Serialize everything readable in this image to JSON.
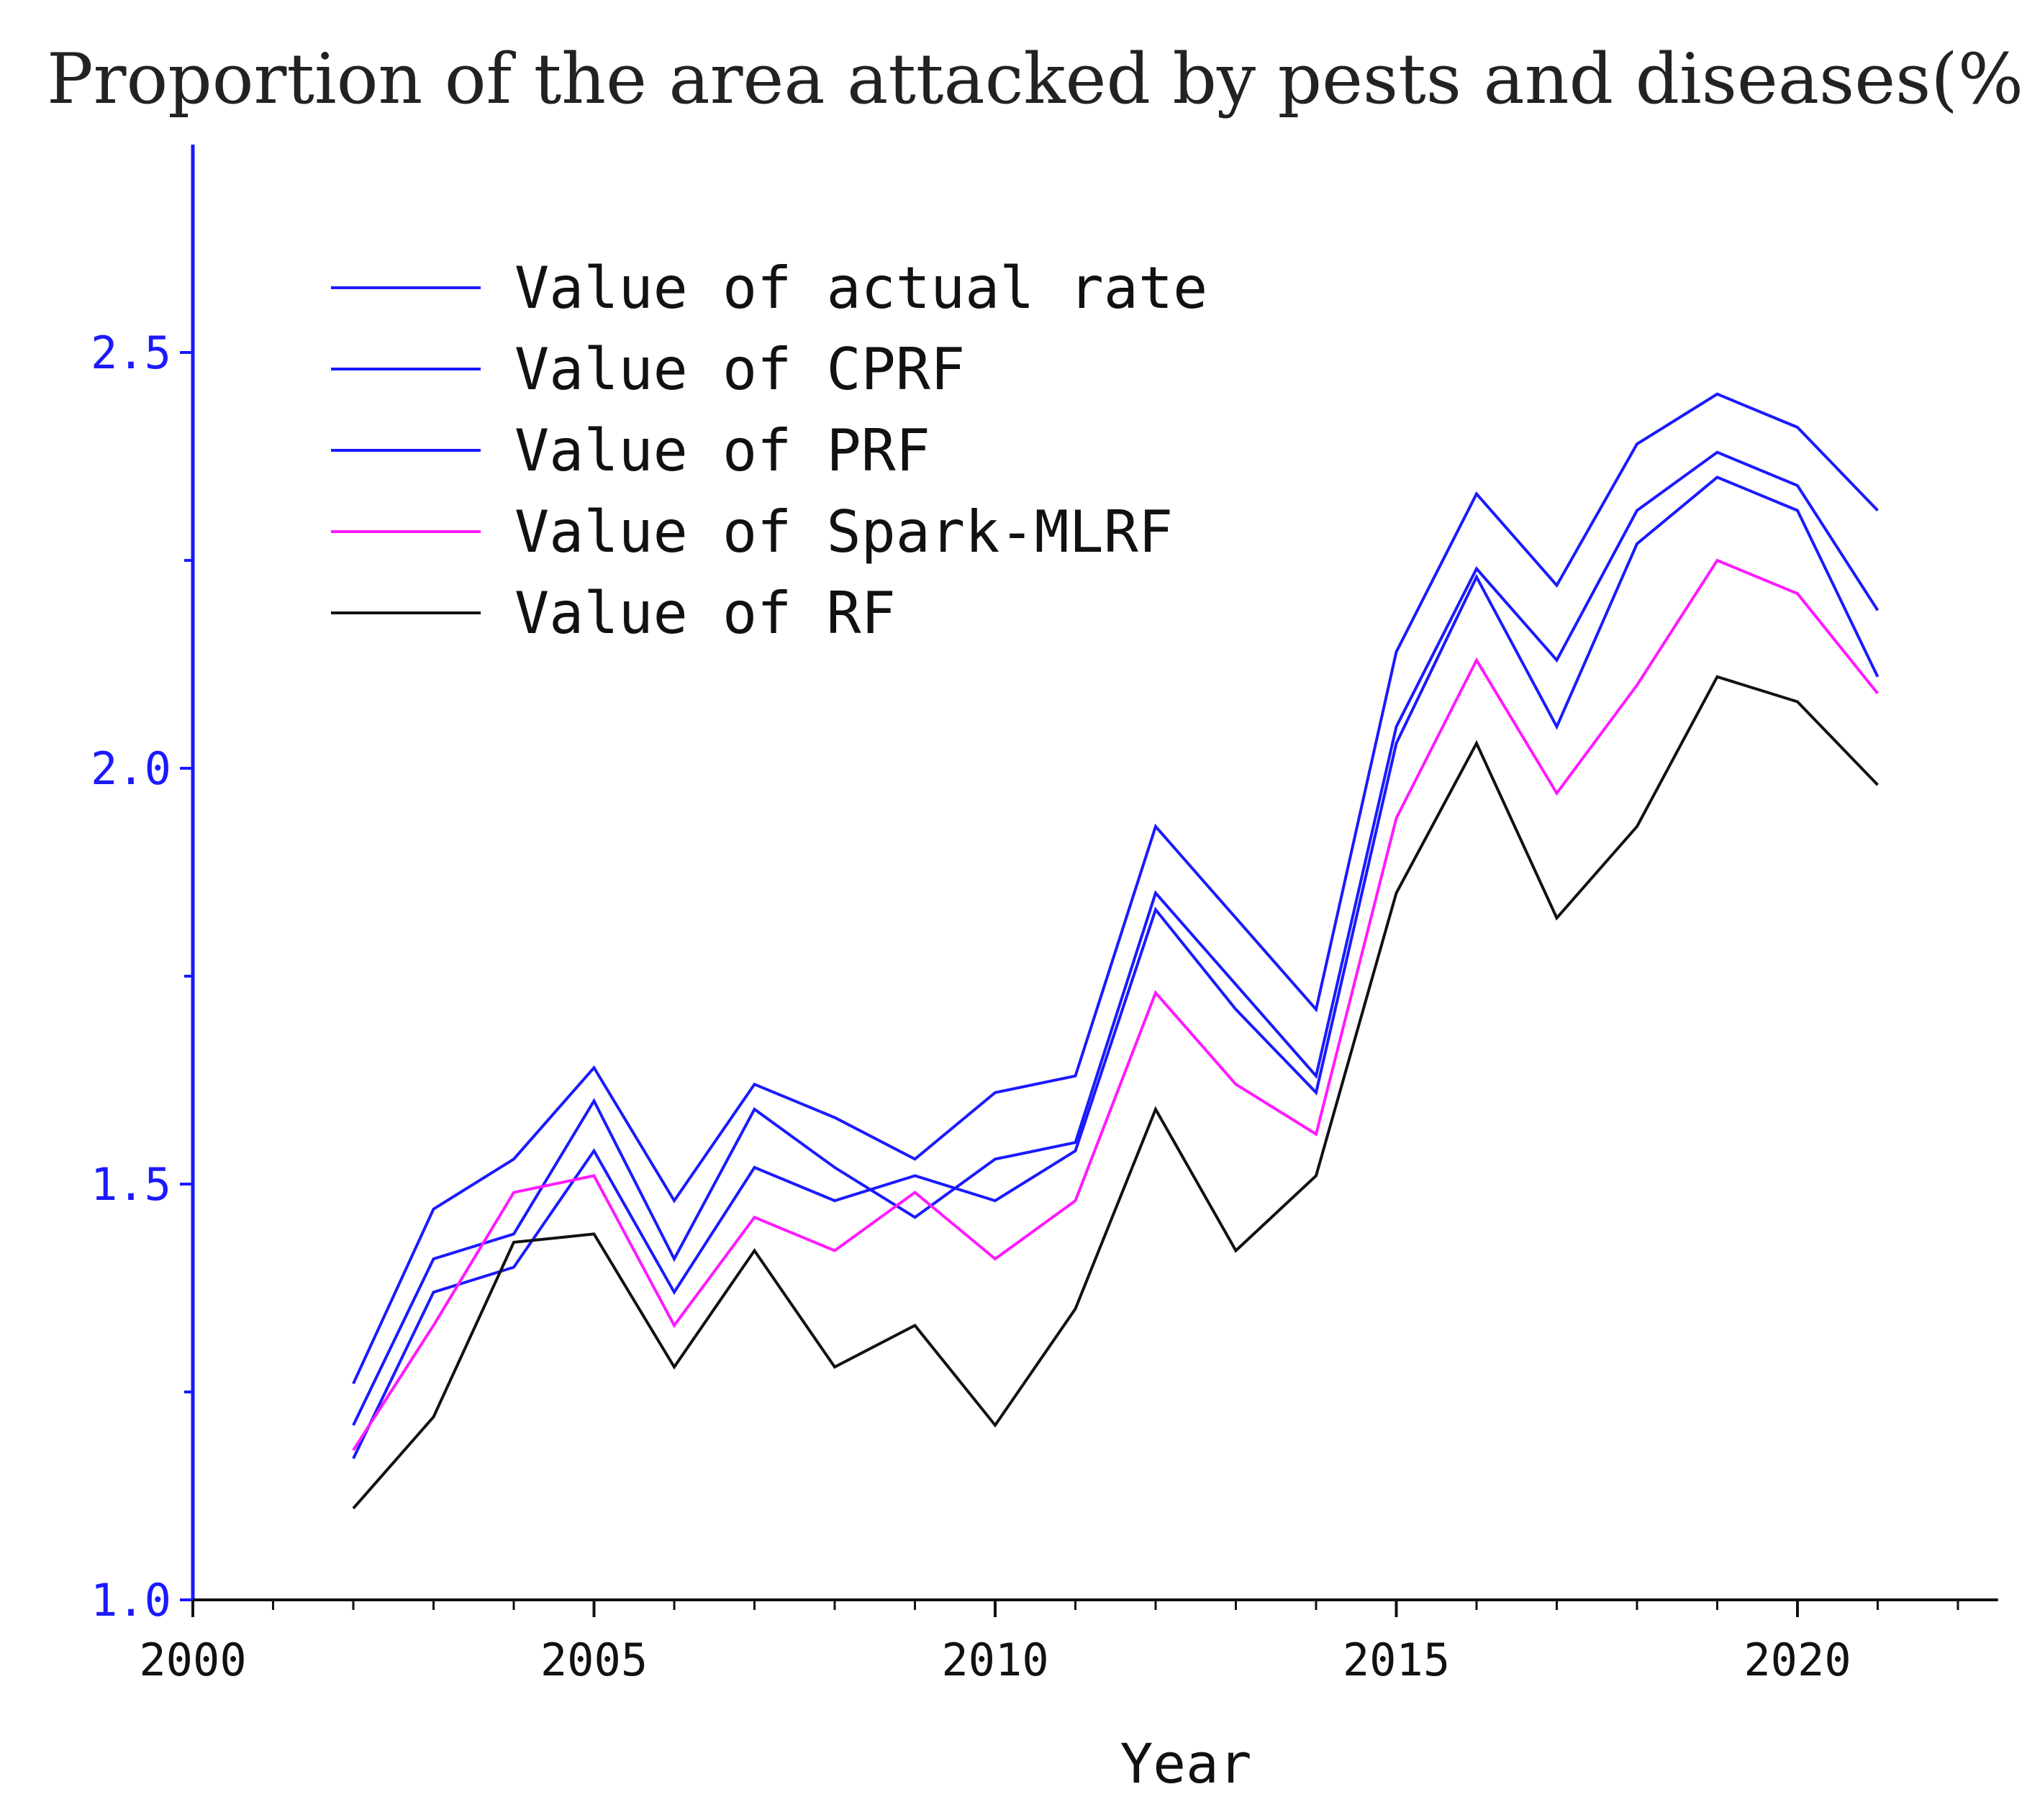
{
  "chart_data": {
    "type": "line",
    "title": "Proportion of the area attacked by pests and diseases(%)",
    "xlabel": "Year",
    "ylabel": "",
    "xlim": [
      2000,
      2022.5
    ],
    "ylim": [
      1.0,
      2.75
    ],
    "x_ticks": [
      2000,
      2005,
      2010,
      2015,
      2020
    ],
    "x_tick_labels": [
      "2000",
      "2005",
      "2010",
      "2015",
      "2020"
    ],
    "x_minor_ticks": [
      2001,
      2002,
      2003,
      2004,
      2006,
      2007,
      2008,
      2009,
      2011,
      2012,
      2013,
      2014,
      2016,
      2017,
      2018,
      2019,
      2021,
      2022
    ],
    "y_ticks": [
      1.0,
      1.5,
      2.0,
      2.5
    ],
    "y_tick_labels": [
      "1.0",
      "1.5",
      "2.0",
      "2.5"
    ],
    "y_minor_ticks": [
      1.25,
      1.75,
      2.25
    ],
    "grid": false,
    "legend_position": "top-left",
    "x": [
      2002,
      2003,
      2004,
      2005,
      2006,
      2007,
      2008,
      2009,
      2010,
      2011,
      2012,
      2013,
      2014,
      2015,
      2016,
      2017,
      2018,
      2019,
      2020,
      2021
    ],
    "series": [
      {
        "name": "Value of actual rate",
        "color": "#1a1aff",
        "values": [
          1.26,
          1.47,
          1.53,
          1.64,
          1.48,
          1.62,
          1.58,
          1.53,
          1.61,
          1.63,
          1.93,
          1.82,
          1.71,
          2.14,
          2.33,
          2.22,
          2.39,
          2.45,
          2.41,
          2.31
        ]
      },
      {
        "name": "Value of CPRF",
        "color": "#1a1aff",
        "values": [
          1.21,
          1.41,
          1.44,
          1.6,
          1.41,
          1.59,
          1.52,
          1.46,
          1.53,
          1.55,
          1.85,
          1.74,
          1.63,
          2.05,
          2.24,
          2.13,
          2.31,
          2.38,
          2.34,
          2.19
        ]
      },
      {
        "name": "Value of PRF",
        "color": "#1a1aff",
        "values": [
          1.17,
          1.37,
          1.4,
          1.54,
          1.37,
          1.52,
          1.48,
          1.51,
          1.48,
          1.54,
          1.83,
          1.71,
          1.61,
          2.03,
          2.23,
          2.05,
          2.27,
          2.35,
          2.31,
          2.11
        ]
      },
      {
        "name": "Value of Spark-MLRF",
        "color": "#ff1aff",
        "values": [
          1.18,
          1.33,
          1.49,
          1.51,
          1.33,
          1.46,
          1.42,
          1.49,
          1.41,
          1.48,
          1.73,
          1.62,
          1.56,
          1.94,
          2.13,
          1.97,
          2.1,
          2.25,
          2.21,
          2.09
        ]
      },
      {
        "name": "Value of RF",
        "color": "#111111",
        "values": [
          1.11,
          1.22,
          1.43,
          1.44,
          1.28,
          1.42,
          1.28,
          1.33,
          1.21,
          1.35,
          1.59,
          1.42,
          1.51,
          1.85,
          2.03,
          1.82,
          1.93,
          2.11,
          2.08,
          1.98
        ]
      }
    ]
  }
}
